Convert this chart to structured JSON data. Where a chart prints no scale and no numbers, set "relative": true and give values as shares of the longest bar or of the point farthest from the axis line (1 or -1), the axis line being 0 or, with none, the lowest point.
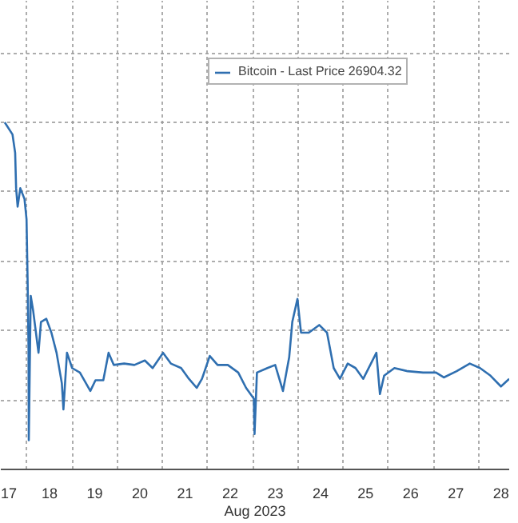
{
  "chart_data": {
    "type": "line",
    "xlabel": "Aug 2023",
    "relative": true,
    "grid": true,
    "legend": "top right",
    "line_style": "solid",
    "marker": "none",
    "xlim": [
      17.42,
      28.68
    ],
    "xticks": [
      {
        "value": 17.5,
        "label": "17"
      },
      {
        "value": 18.5,
        "label": "18"
      },
      {
        "value": 19.5,
        "label": "19"
      },
      {
        "value": 20.5,
        "label": "20"
      },
      {
        "value": 21.5,
        "label": "21"
      },
      {
        "value": 22.5,
        "label": "22"
      },
      {
        "value": 23.5,
        "label": "23"
      },
      {
        "value": 24.5,
        "label": "24"
      },
      {
        "value": 25.5,
        "label": "25"
      },
      {
        "value": 26.5,
        "label": "26"
      },
      {
        "value": 27.5,
        "label": "27"
      },
      {
        "value": 28.5,
        "label": "28"
      }
    ],
    "series": [
      {
        "name": "Bitcoin - Last Price 26904.32",
        "color": "#2f6fb0",
        "x": [
          17.507,
          17.679,
          17.738,
          17.759,
          17.793,
          17.852,
          17.945,
          17.99,
          18.014,
          18.034,
          18.04,
          18.083,
          18.138,
          18.255,
          18.31,
          18.428,
          18.541,
          18.655,
          18.772,
          18.807,
          18.886,
          19.0,
          19.172,
          19.403,
          19.517,
          19.69,
          19.807,
          19.921,
          20.152,
          20.379,
          20.61,
          20.783,
          21.014,
          21.186,
          21.414,
          21.586,
          21.759,
          21.876,
          22.048,
          22.221,
          22.448,
          22.679,
          22.852,
          23.024,
          23.04,
          23.093,
          23.324,
          23.497,
          23.669,
          23.807,
          23.876,
          23.99,
          24.069,
          24.241,
          24.472,
          24.645,
          24.793,
          24.931,
          25.103,
          25.276,
          25.448,
          25.738,
          25.817,
          25.91,
          26.138,
          26.428,
          26.772,
          27.059,
          27.231,
          27.517,
          27.807,
          28.034,
          28.266,
          28.497,
          28.68
        ],
        "values": [
          1.0,
          0.965,
          0.912,
          0.81,
          0.757,
          0.81,
          0.779,
          0.721,
          0.544,
          0.35,
          0.084,
          0.5,
          0.456,
          0.336,
          0.425,
          0.434,
          0.394,
          0.336,
          0.248,
          0.173,
          0.336,
          0.292,
          0.279,
          0.226,
          0.257,
          0.257,
          0.336,
          0.301,
          0.305,
          0.301,
          0.314,
          0.292,
          0.336,
          0.305,
          0.292,
          0.261,
          0.235,
          0.261,
          0.327,
          0.301,
          0.301,
          0.279,
          0.235,
          0.204,
          0.102,
          0.279,
          0.292,
          0.301,
          0.226,
          0.323,
          0.425,
          0.491,
          0.394,
          0.394,
          0.416,
          0.394,
          0.292,
          0.261,
          0.305,
          0.292,
          0.261,
          0.336,
          0.217,
          0.27,
          0.292,
          0.283,
          0.279,
          0.279,
          0.265,
          0.283,
          0.305,
          0.292,
          0.27,
          0.239,
          0.261
        ]
      }
    ]
  }
}
